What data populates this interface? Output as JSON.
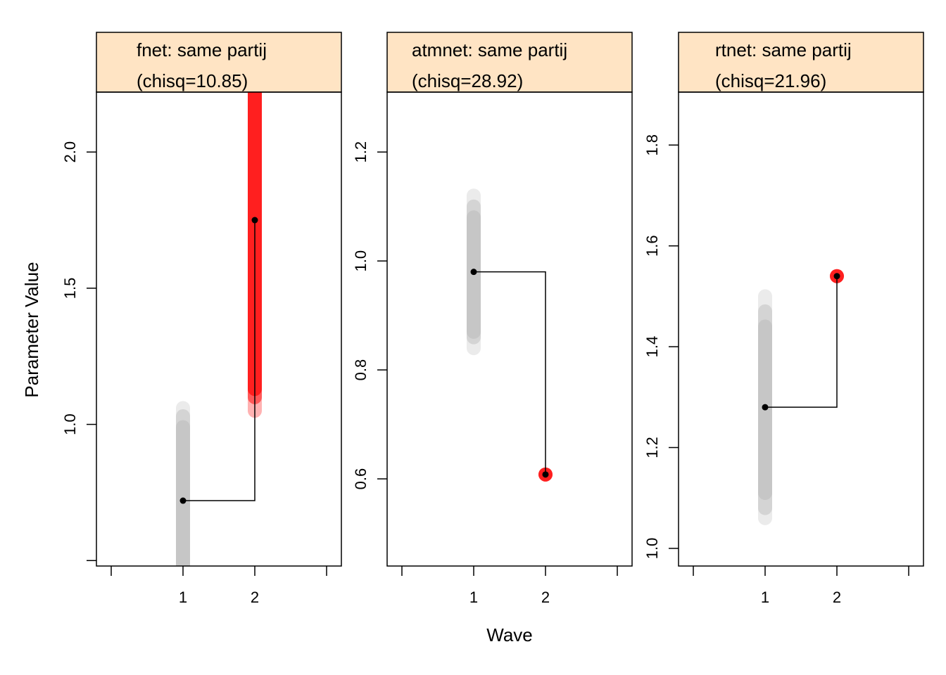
{
  "figure": {
    "ylabel": "Parameter Value",
    "xlabel": "Wave"
  },
  "colors": {
    "strip": "#FFE4C4",
    "ci_gray": "#BEBEBE",
    "ci_red": "#FF0000",
    "point": "#000000",
    "axis": "#000000"
  },
  "chart_data": [
    {
      "type": "line",
      "title_line1": "fnet: same partij",
      "title_line2": "(chisq=10.85)",
      "xlim": [
        0,
        3
      ],
      "xticks": [
        0,
        1,
        2,
        3
      ],
      "xticklabels": [
        "",
        "1",
        "2",
        ""
      ],
      "ylim": [
        0.48,
        2.22
      ],
      "yticks": [
        0.5,
        1.0,
        1.5,
        2.0
      ],
      "yticklabels": [
        "",
        "1.0",
        "1.5",
        "2.0"
      ],
      "points": [
        {
          "x": 1,
          "y": 0.72,
          "color": "gray",
          "ci_outer": [
            0.44,
            1.06
          ],
          "ci_mid": [
            0.46,
            1.03
          ],
          "ci_inner": [
            0.48,
            0.99
          ]
        },
        {
          "x": 2,
          "y": 1.75,
          "color": "red",
          "ci_outer": [
            1.05,
            2.3
          ],
          "ci_mid": [
            1.1,
            2.3
          ],
          "ci_inner": [
            1.13,
            2.3
          ]
        }
      ]
    },
    {
      "type": "line",
      "title_line1": "atmnet: same partij",
      "title_line2": "(chisq=28.92)",
      "xlim": [
        0,
        3
      ],
      "xticks": [
        0,
        1,
        2,
        3
      ],
      "xticklabels": [
        "",
        "1",
        "2",
        ""
      ],
      "ylim": [
        0.44,
        1.31
      ],
      "yticks": [
        0.6,
        0.8,
        1.0,
        1.2
      ],
      "yticklabels": [
        "0.6",
        "0.8",
        "1.0",
        "1.2"
      ],
      "points": [
        {
          "x": 1,
          "y": 0.98,
          "color": "gray",
          "ci_outer": [
            0.84,
            1.12
          ],
          "ci_mid": [
            0.86,
            1.1
          ],
          "ci_inner": [
            0.87,
            1.08
          ]
        },
        {
          "x": 2,
          "y": 0.608,
          "color": "red",
          "ci_outer": [
            0.608,
            0.608
          ],
          "ci_mid": [
            0.608,
            0.608
          ],
          "ci_inner": [
            0.608,
            0.608
          ]
        }
      ]
    },
    {
      "type": "line",
      "title_line1": "rtnet: same partij",
      "title_line2": "(chisq=21.96)",
      "xlim": [
        0,
        3
      ],
      "xticks": [
        0,
        1,
        2,
        3
      ],
      "xticklabels": [
        "",
        "1",
        "2",
        ""
      ],
      "ylim": [
        0.965,
        1.905
      ],
      "yticks": [
        1.0,
        1.2,
        1.4,
        1.6,
        1.8
      ],
      "yticklabels": [
        "1.0",
        "1.2",
        "1.4",
        "1.6",
        "1.8"
      ],
      "points": [
        {
          "x": 1,
          "y": 1.28,
          "color": "gray",
          "ci_outer": [
            1.06,
            1.5
          ],
          "ci_mid": [
            1.08,
            1.47
          ],
          "ci_inner": [
            1.11,
            1.44
          ]
        },
        {
          "x": 2,
          "y": 1.54,
          "color": "red",
          "ci_outer": [
            1.54,
            1.54
          ],
          "ci_mid": [
            1.54,
            1.54
          ],
          "ci_inner": [
            1.54,
            1.54
          ]
        }
      ]
    }
  ]
}
